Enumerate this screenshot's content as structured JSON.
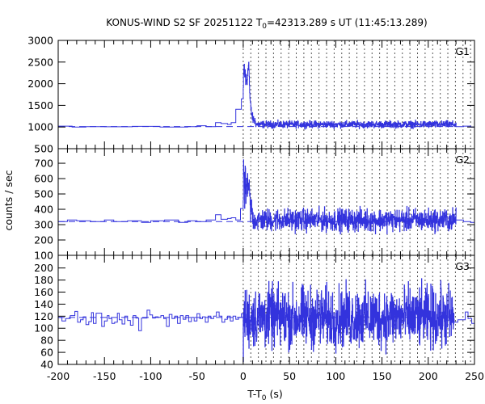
{
  "chart_data": {
    "type": "line",
    "title": "KONUS-WIND S2 SF 20251122 T0=42313.289 s UT (11:45:13.289)",
    "title_parts": {
      "prefix": "KONUS-WIND S2 SF 20251122 T",
      "subscript": "0",
      "suffix": "=42313.289 s UT (11:45:13.289)"
    },
    "xlabel": "T-T0 (s)",
    "xlabel_parts": {
      "prefix": "T-T",
      "subscript": "0",
      "suffix": " (s)"
    },
    "ylabel": "counts / sec",
    "xlim": [
      -200,
      250
    ],
    "x_ticks": [
      -200,
      -150,
      -100,
      -50,
      0,
      50,
      100,
      150,
      200,
      250
    ],
    "x_minor_step": 10,
    "series_color": "#3333dd",
    "dotted_lines": {
      "start": 0,
      "step": 8.192,
      "count": 31,
      "color": "#555555"
    },
    "panels": [
      {
        "name": "G1",
        "label": "G1",
        "ylim": [
          500,
          3000
        ],
        "y_ticks": [
          500,
          1000,
          1500,
          2000,
          2500,
          3000
        ],
        "background_level": 1010,
        "pre_burst_bins": [
          {
            "from": -200,
            "to": -185,
            "value": 1020
          },
          {
            "from": -185,
            "to": -170,
            "value": 1000
          },
          {
            "from": -170,
            "to": -150,
            "value": 1010
          },
          {
            "from": -150,
            "to": -120,
            "value": 1005
          },
          {
            "from": -120,
            "to": -90,
            "value": 1015
          },
          {
            "from": -90,
            "to": -60,
            "value": 1000
          },
          {
            "from": -60,
            "to": -50,
            "value": 1010
          },
          {
            "from": -50,
            "to": -40,
            "value": 1030
          },
          {
            "from": -40,
            "to": -30,
            "value": 1010
          },
          {
            "from": -30,
            "to": -24,
            "value": 1100
          },
          {
            "from": -24,
            "to": -17,
            "value": 1080
          },
          {
            "from": -17,
            "to": -13,
            "value": 1060
          },
          {
            "from": -13,
            "to": -8,
            "value": 1100
          },
          {
            "from": -8,
            "to": -2,
            "value": 1410
          },
          {
            "from": -2,
            "to": 0,
            "value": 1650
          }
        ],
        "burst_profile": [
          {
            "t": 0,
            "value": 1900
          },
          {
            "t": 0.5,
            "value": 2300
          },
          {
            "t": 1,
            "value": 2460
          },
          {
            "t": 1.5,
            "value": 2100
          },
          {
            "t": 2,
            "value": 2350
          },
          {
            "t": 2.5,
            "value": 2000
          },
          {
            "t": 3,
            "value": 2150
          },
          {
            "t": 4,
            "value": 1950
          },
          {
            "t": 5,
            "value": 2400
          },
          {
            "t": 6,
            "value": 2460
          },
          {
            "t": 6.5,
            "value": 2100
          },
          {
            "t": 7,
            "value": 1700
          },
          {
            "t": 8,
            "value": 1450
          },
          {
            "t": 9,
            "value": 1300
          },
          {
            "t": 10,
            "value": 1200
          },
          {
            "t": 12,
            "value": 1150
          },
          {
            "t": 14,
            "value": 1100
          }
        ],
        "post_level": 1060,
        "post_noise": 60,
        "post_end": 230,
        "tail_bins": [
          {
            "from": 230,
            "to": 238,
            "value": 1010
          },
          {
            "from": 238,
            "to": 246,
            "value": 1020
          },
          {
            "from": 246,
            "to": 250,
            "value": 1000
          }
        ]
      },
      {
        "name": "G2",
        "label": "G2",
        "ylim": [
          100,
          795
        ],
        "y_ticks": [
          100,
          200,
          300,
          400,
          500,
          600,
          700
        ],
        "background_level": 320,
        "pre_burst_bins": [
          {
            "from": -200,
            "to": -190,
            "value": 320
          },
          {
            "from": -190,
            "to": -180,
            "value": 330
          },
          {
            "from": -180,
            "to": -165,
            "value": 325
          },
          {
            "from": -165,
            "to": -150,
            "value": 320
          },
          {
            "from": -150,
            "to": -140,
            "value": 330
          },
          {
            "from": -140,
            "to": -125,
            "value": 320
          },
          {
            "from": -125,
            "to": -110,
            "value": 325
          },
          {
            "from": -110,
            "to": -100,
            "value": 315
          },
          {
            "from": -100,
            "to": -85,
            "value": 325
          },
          {
            "from": -85,
            "to": -70,
            "value": 330
          },
          {
            "from": -70,
            "to": -60,
            "value": 315
          },
          {
            "from": -60,
            "to": -50,
            "value": 325
          },
          {
            "from": -50,
            "to": -40,
            "value": 320
          },
          {
            "from": -40,
            "to": -30,
            "value": 330
          },
          {
            "from": -30,
            "to": -24,
            "value": 365
          },
          {
            "from": -24,
            "to": -17,
            "value": 335
          },
          {
            "from": -17,
            "to": -13,
            "value": 340
          },
          {
            "from": -13,
            "to": -8,
            "value": 345
          },
          {
            "from": -8,
            "to": -3,
            "value": 330
          },
          {
            "from": -3,
            "to": 0,
            "value": 405
          }
        ],
        "burst_profile": [
          {
            "t": 0,
            "value": 480
          },
          {
            "t": 0.5,
            "value": 690
          },
          {
            "t": 1,
            "value": 550
          },
          {
            "t": 1.5,
            "value": 460
          },
          {
            "t": 2,
            "value": 580
          },
          {
            "t": 3,
            "value": 500
          },
          {
            "t": 4,
            "value": 600
          },
          {
            "t": 5,
            "value": 460
          },
          {
            "t": 6,
            "value": 560
          },
          {
            "t": 7,
            "value": 470
          },
          {
            "t": 8,
            "value": 380
          },
          {
            "t": 9,
            "value": 420
          },
          {
            "t": 10,
            "value": 360
          }
        ],
        "post_level": 330,
        "post_noise": 55,
        "post_end": 230,
        "tail_bins": [
          {
            "from": 230,
            "to": 238,
            "value": 330
          },
          {
            "from": 238,
            "to": 246,
            "value": 320
          },
          {
            "from": 246,
            "to": 250,
            "value": 315
          }
        ]
      },
      {
        "name": "G3",
        "label": "G3",
        "ylim": [
          40,
          221
        ],
        "y_ticks": [
          40,
          60,
          80,
          100,
          120,
          140,
          160,
          180,
          200
        ],
        "background_level": 118,
        "pre_burst_bins": [
          {
            "from": -200,
            "to": -196,
            "value": 118
          },
          {
            "from": -196,
            "to": -192,
            "value": 112
          },
          {
            "from": -192,
            "to": -187,
            "value": 116
          },
          {
            "from": -187,
            "to": -182,
            "value": 121
          },
          {
            "from": -182,
            "to": -179,
            "value": 128
          },
          {
            "from": -179,
            "to": -176,
            "value": 110
          },
          {
            "from": -176,
            "to": -173,
            "value": 114
          },
          {
            "from": -173,
            "to": -170,
            "value": 119
          },
          {
            "from": -170,
            "to": -167,
            "value": 106
          },
          {
            "from": -167,
            "to": -164,
            "value": 111
          },
          {
            "from": -164,
            "to": -162,
            "value": 126
          },
          {
            "from": -162,
            "to": -159,
            "value": 108
          },
          {
            "from": -159,
            "to": -153,
            "value": 125
          },
          {
            "from": -153,
            "to": -150,
            "value": 103
          },
          {
            "from": -150,
            "to": -147,
            "value": 112
          },
          {
            "from": -147,
            "to": -145,
            "value": 121
          },
          {
            "from": -145,
            "to": -142,
            "value": 116
          },
          {
            "from": -142,
            "to": -139,
            "value": 108
          },
          {
            "from": -139,
            "to": -136,
            "value": 110
          },
          {
            "from": -136,
            "to": -134,
            "value": 125
          },
          {
            "from": -134,
            "to": -131,
            "value": 114
          },
          {
            "from": -131,
            "to": -128,
            "value": 107
          },
          {
            "from": -128,
            "to": -125,
            "value": 120
          },
          {
            "from": -125,
            "to": -122,
            "value": 113
          },
          {
            "from": -122,
            "to": -119,
            "value": 105
          },
          {
            "from": -119,
            "to": -116,
            "value": 121
          },
          {
            "from": -116,
            "to": -113,
            "value": 117
          },
          {
            "from": -113,
            "to": -110,
            "value": 96
          },
          {
            "from": -110,
            "to": -107,
            "value": 117
          },
          {
            "from": -107,
            "to": -104,
            "value": 117
          },
          {
            "from": -104,
            "to": -101,
            "value": 130
          },
          {
            "from": -101,
            "to": -98,
            "value": 122
          },
          {
            "from": -98,
            "to": -95,
            "value": 117
          },
          {
            "from": -95,
            "to": -92,
            "value": 119
          },
          {
            "from": -92,
            "to": -89,
            "value": 118
          },
          {
            "from": -89,
            "to": -86,
            "value": 121
          },
          {
            "from": -86,
            "to": -83,
            "value": 116
          },
          {
            "from": -83,
            "to": -80,
            "value": 103
          },
          {
            "from": -80,
            "to": -77,
            "value": 123
          },
          {
            "from": -77,
            "to": -74,
            "value": 116
          },
          {
            "from": -74,
            "to": -71,
            "value": 120
          },
          {
            "from": -71,
            "to": -68,
            "value": 108
          },
          {
            "from": -68,
            "to": -65,
            "value": 121
          },
          {
            "from": -65,
            "to": -62,
            "value": 115
          },
          {
            "from": -62,
            "to": -59,
            "value": 121
          },
          {
            "from": -59,
            "to": -56,
            "value": 111
          },
          {
            "from": -56,
            "to": -53,
            "value": 118
          },
          {
            "from": -53,
            "to": -50,
            "value": 112
          },
          {
            "from": -50,
            "to": -47,
            "value": 124
          },
          {
            "from": -47,
            "to": -44,
            "value": 116
          },
          {
            "from": -44,
            "to": -41,
            "value": 119
          },
          {
            "from": -41,
            "to": -38,
            "value": 110
          },
          {
            "from": -38,
            "to": -35,
            "value": 120
          },
          {
            "from": -35,
            "to": -32,
            "value": 116
          },
          {
            "from": -32,
            "to": -29,
            "value": 120
          },
          {
            "from": -29,
            "to": -26,
            "value": 127
          },
          {
            "from": -26,
            "to": -23,
            "value": 120
          },
          {
            "from": -23,
            "to": -20,
            "value": 110
          },
          {
            "from": -20,
            "to": -17,
            "value": 115
          },
          {
            "from": -17,
            "to": -14,
            "value": 120
          },
          {
            "from": -14,
            "to": -11,
            "value": 112
          },
          {
            "from": -11,
            "to": -8,
            "value": 120
          },
          {
            "from": -8,
            "to": -5,
            "value": 115
          },
          {
            "from": -5,
            "to": -2,
            "value": 118
          },
          {
            "from": -2,
            "to": 0,
            "value": 124
          }
        ],
        "burst_profile": [],
        "post_level": 118,
        "post_noise": 38,
        "post_end": 228,
        "tail_bins": [
          {
            "from": 228,
            "to": 232,
            "value": 110
          },
          {
            "from": 232,
            "to": 236,
            "value": 114
          },
          {
            "from": 236,
            "to": 240,
            "value": 114
          },
          {
            "from": 240,
            "to": 243,
            "value": 127
          },
          {
            "from": 243,
            "to": 247,
            "value": 116
          },
          {
            "from": 247,
            "to": 250,
            "value": 108
          }
        ]
      }
    ]
  }
}
